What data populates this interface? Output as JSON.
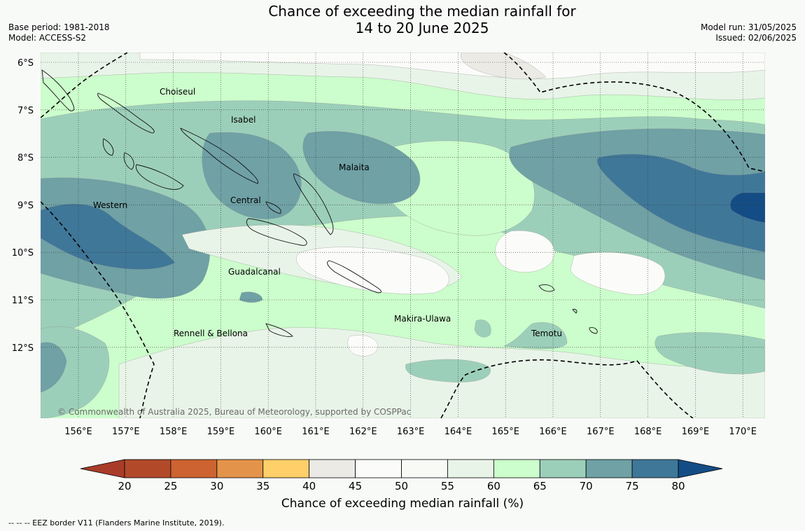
{
  "title": {
    "line1": "Chance of exceeding the median rainfall for",
    "line2": "14 to 20 June 2025"
  },
  "meta_left": {
    "base_period": "Base period: 1981-2018",
    "model": "Model: ACCESS-S2"
  },
  "meta_right": {
    "model_run": "Model run: 31/05/2025",
    "issued": "Issued: 02/06/2025"
  },
  "map": {
    "lat_labels": [
      "6°S",
      "7°S",
      "8°S",
      "9°S",
      "10°S",
      "11°S",
      "12°S"
    ],
    "lon_labels": [
      "156°E",
      "157°E",
      "158°E",
      "159°E",
      "160°E",
      "161°E",
      "162°E",
      "163°E",
      "164°E",
      "165°E",
      "166°E",
      "167°E",
      "168°E",
      "169°E",
      "170°E"
    ],
    "region_labels": {
      "choiseul": "Choiseul",
      "isabel": "Isabel",
      "malaita": "Malaita",
      "western": "Western",
      "central": "Central",
      "guadalcanal": "Guadalcanal",
      "makira": "Makira-Ulawa",
      "rennell": "Rennell & Bellona",
      "temotu": "Temotu"
    },
    "copyright": "© Commonwealth of Australia 2025, Bureau of Meteorology, supported by COSPPac"
  },
  "colorbar": {
    "ticks": [
      "20",
      "25",
      "30",
      "35",
      "40",
      "45",
      "50",
      "55",
      "60",
      "65",
      "70",
      "75",
      "80"
    ],
    "colors": [
      "#a93c28",
      "#b24a2a",
      "#cc6331",
      "#e3944a",
      "#ffcf69",
      "#ebeae5",
      "#fbfcfa",
      "#f8faf6",
      "#e9f4e8",
      "#ccfdcc",
      "#9ccfba",
      "#6fa1a5",
      "#3f7799",
      "#144d85"
    ],
    "label": "Chance of exceeding median rainfall (%)"
  },
  "footnote": "--  --  -- EEZ border V11 (Flanders Marine Institute, 2019)."
}
